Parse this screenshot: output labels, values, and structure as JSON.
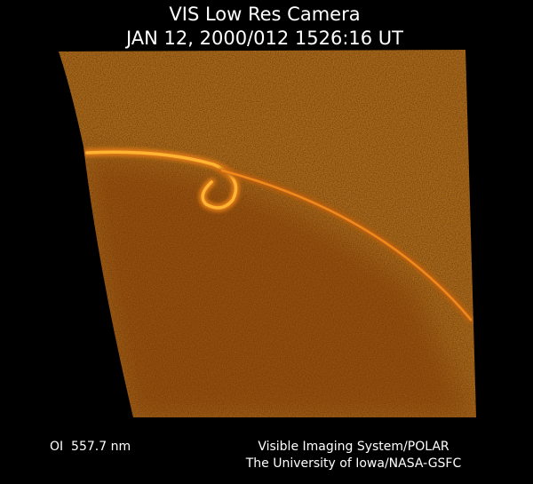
{
  "header": {
    "title": "VIS Low Res Camera",
    "timestamp": "JAN 12, 2000/012 1526:16 UT"
  },
  "footer": {
    "filter": "OI  557.7 nm",
    "instrument": "Visible Imaging System/POLAR",
    "credit": "The University of Iowa/NASA-GSFC"
  }
}
